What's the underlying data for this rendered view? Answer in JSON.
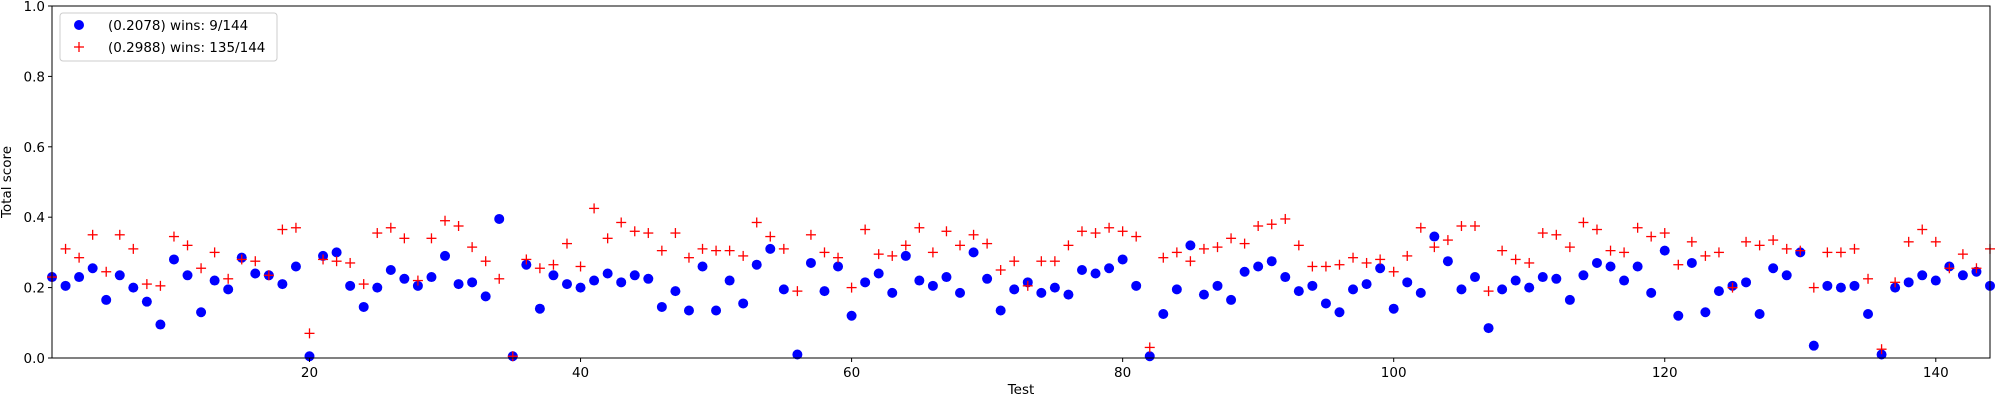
{
  "chart_data": {
    "type": "scatter",
    "title": "",
    "xlabel": "Test",
    "ylabel": "Total score",
    "xlim": [
      1,
      144
    ],
    "ylim": [
      0.0,
      1.0
    ],
    "xticks": [
      20,
      40,
      60,
      80,
      100,
      120,
      140
    ],
    "yticks": [
      0.0,
      0.2,
      0.4,
      0.6,
      0.8,
      1.0
    ],
    "xtick_labels": [
      "20",
      "40",
      "60",
      "80",
      "100",
      "120",
      "140"
    ],
    "ytick_labels": [
      "0.0",
      "0.2",
      "0.4",
      "0.6",
      "0.8",
      "1.0"
    ],
    "grid": false,
    "legend_position": "top-left",
    "x": [
      1,
      2,
      3,
      4,
      5,
      6,
      7,
      8,
      9,
      10,
      11,
      12,
      13,
      14,
      15,
      16,
      17,
      18,
      19,
      20,
      21,
      22,
      23,
      24,
      25,
      26,
      27,
      28,
      29,
      30,
      31,
      32,
      33,
      34,
      35,
      36,
      37,
      38,
      39,
      40,
      41,
      42,
      43,
      44,
      45,
      46,
      47,
      48,
      49,
      50,
      51,
      52,
      53,
      54,
      55,
      56,
      57,
      58,
      59,
      60,
      61,
      62,
      63,
      64,
      65,
      66,
      67,
      68,
      69,
      70,
      71,
      72,
      73,
      74,
      75,
      76,
      77,
      78,
      79,
      80,
      81,
      82,
      83,
      84,
      85,
      86,
      87,
      88,
      89,
      90,
      91,
      92,
      93,
      94,
      95,
      96,
      97,
      98,
      99,
      100,
      101,
      102,
      103,
      104,
      105,
      106,
      107,
      108,
      109,
      110,
      111,
      112,
      113,
      114,
      115,
      116,
      117,
      118,
      119,
      120,
      121,
      122,
      123,
      124,
      125,
      126,
      127,
      128,
      129,
      130,
      131,
      132,
      133,
      134,
      135,
      136,
      137,
      138,
      139,
      140,
      141,
      142,
      143,
      144
    ],
    "series": [
      {
        "name": "(0.2078) wins: 9/144",
        "marker": "circle",
        "color": "#0000ff",
        "values": [
          0.23,
          0.205,
          0.23,
          0.255,
          0.165,
          0.235,
          0.2,
          0.16,
          0.095,
          0.28,
          0.235,
          0.13,
          0.22,
          0.195,
          0.285,
          0.24,
          0.235,
          0.21,
          0.26,
          0.005,
          0.29,
          0.3,
          0.205,
          0.145,
          0.2,
          0.25,
          0.225,
          0.205,
          0.23,
          0.29,
          0.21,
          0.215,
          0.175,
          0.395,
          0.005,
          0.265,
          0.14,
          0.235,
          0.21,
          0.2,
          0.22,
          0.24,
          0.215,
          0.235,
          0.225,
          0.145,
          0.19,
          0.135,
          0.26,
          0.135,
          0.22,
          0.155,
          0.265,
          0.31,
          0.195,
          0.01,
          0.27,
          0.19,
          0.26,
          0.12,
          0.215,
          0.24,
          0.185,
          0.29,
          0.22,
          0.205,
          0.23,
          0.185,
          0.3,
          0.225,
          0.135,
          0.195,
          0.215,
          0.185,
          0.2,
          0.18,
          0.25,
          0.24,
          0.255,
          0.28,
          0.205,
          0.005,
          0.125,
          0.195,
          0.32,
          0.18,
          0.205,
          0.165,
          0.245,
          0.26,
          0.275,
          0.23,
          0.19,
          0.205,
          0.155,
          0.13,
          0.195,
          0.21,
          0.255,
          0.14,
          0.215,
          0.185,
          0.345,
          0.275,
          0.195,
          0.23,
          0.085,
          0.195,
          0.22,
          0.2,
          0.23,
          0.225,
          0.165,
          0.235,
          0.27,
          0.26,
          0.22,
          0.26,
          0.185,
          0.305,
          0.12,
          0.27,
          0.13,
          0.19,
          0.205,
          0.215,
          0.125,
          0.255,
          0.235,
          0.3,
          0.035,
          0.205,
          0.2,
          0.205,
          0.125,
          0.01,
          0.2,
          0.215,
          0.235,
          0.22,
          0.26,
          0.235,
          0.245,
          0.205
        ]
      },
      {
        "name": "(0.2988) wins: 135/144",
        "marker": "plus",
        "color": "#ff0000",
        "values": [
          0.23,
          0.31,
          0.285,
          0.35,
          0.245,
          0.35,
          0.31,
          0.21,
          0.205,
          0.345,
          0.32,
          0.255,
          0.3,
          0.225,
          0.28,
          0.275,
          0.235,
          0.365,
          0.37,
          0.07,
          0.28,
          0.275,
          0.27,
          0.21,
          0.355,
          0.37,
          0.34,
          0.22,
          0.34,
          0.39,
          0.375,
          0.315,
          0.275,
          0.225,
          0.005,
          0.28,
          0.255,
          0.265,
          0.325,
          0.26,
          0.425,
          0.34,
          0.385,
          0.36,
          0.355,
          0.305,
          0.355,
          0.285,
          0.31,
          0.305,
          0.305,
          0.29,
          0.385,
          0.345,
          0.31,
          0.19,
          0.35,
          0.3,
          0.285,
          0.2,
          0.365,
          0.295,
          0.29,
          0.32,
          0.37,
          0.3,
          0.36,
          0.32,
          0.35,
          0.325,
          0.25,
          0.275,
          0.205,
          0.275,
          0.275,
          0.32,
          0.36,
          0.355,
          0.37,
          0.36,
          0.345,
          0.03,
          0.285,
          0.3,
          0.275,
          0.31,
          0.315,
          0.34,
          0.325,
          0.375,
          0.38,
          0.395,
          0.32,
          0.26,
          0.26,
          0.265,
          0.285,
          0.27,
          0.28,
          0.245,
          0.29,
          0.37,
          0.315,
          0.335,
          0.375,
          0.375,
          0.19,
          0.305,
          0.28,
          0.27,
          0.355,
          0.35,
          0.315,
          0.385,
          0.365,
          0.305,
          0.3,
          0.37,
          0.345,
          0.355,
          0.265,
          0.33,
          0.29,
          0.3,
          0.2,
          0.33,
          0.32,
          0.335,
          0.31,
          0.305,
          0.2,
          0.3,
          0.3,
          0.31,
          0.225,
          0.025,
          0.215,
          0.33,
          0.365,
          0.33,
          0.255,
          0.295,
          0.255,
          0.31
        ]
      }
    ]
  }
}
